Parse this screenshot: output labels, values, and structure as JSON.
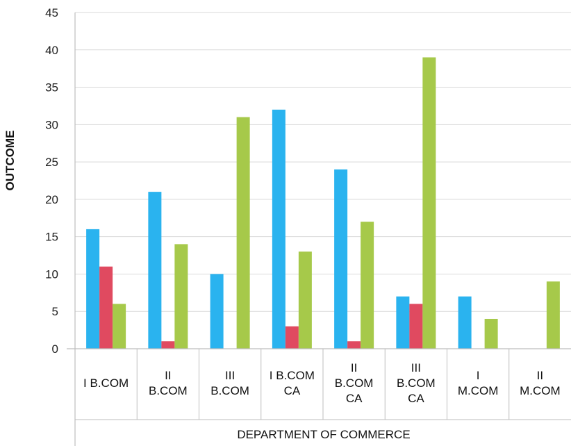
{
  "chart_data": {
    "type": "bar",
    "title": "",
    "xlabel": "DEPARTMENT OF COMMERCE",
    "ylabel": "OUTCOME",
    "ylim": [
      0,
      45
    ],
    "yticks": [
      0,
      5,
      10,
      15,
      20,
      25,
      30,
      35,
      40,
      45
    ],
    "grid": true,
    "legend": "none",
    "categories": [
      [
        "I B.COM"
      ],
      [
        "II",
        "B.COM"
      ],
      [
        "III",
        "B.COM"
      ],
      [
        "I B.COM",
        "CA"
      ],
      [
        "II",
        "B.COM",
        "CA"
      ],
      [
        "III",
        "B.COM",
        "CA"
      ],
      [
        "I",
        "M.COM"
      ],
      [
        "II",
        "M.COM"
      ]
    ],
    "series": [
      {
        "color": "#2ab3ef",
        "values": [
          16,
          21,
          10,
          32,
          24,
          7,
          7,
          0
        ]
      },
      {
        "color": "#e04a60",
        "values": [
          11,
          1,
          0,
          3,
          1,
          6,
          0,
          0
        ]
      },
      {
        "color": "#a6c94a",
        "values": [
          6,
          14,
          31,
          13,
          17,
          39,
          4,
          9
        ]
      }
    ]
  }
}
